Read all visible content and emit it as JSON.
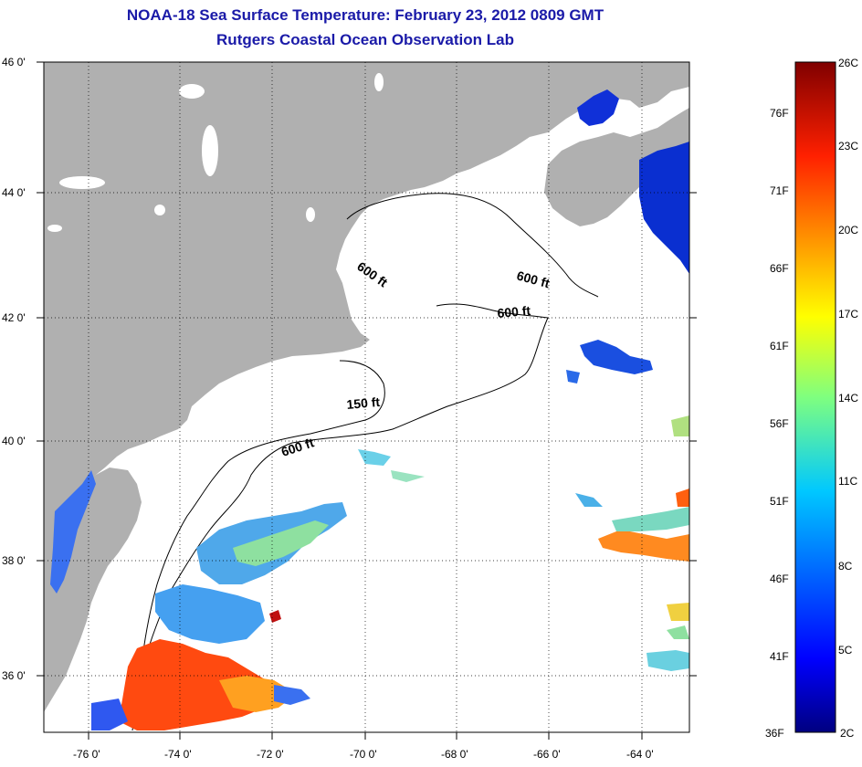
{
  "title": {
    "line1": "NOAA-18 Sea Surface Temperature:  February 23, 2012 0809 GMT",
    "line2": "Rutgers Coastal Ocean Observation Lab"
  },
  "axes": {
    "lat_labels": [
      "46 0'",
      "44 0'",
      "42 0'",
      "40 0'",
      "38 0'",
      "36 0'"
    ],
    "lon_labels": [
      "-76 0'",
      "-74 0'",
      "-72 0'",
      "-70 0'",
      "-68 0'",
      "-66 0'",
      "-64 0'"
    ],
    "lat_range": [
      35,
      46
    ],
    "lon_range": [
      -77,
      -63
    ]
  },
  "contours": {
    "label_600_a": "600 ft",
    "label_600_b": "600 ft",
    "label_600_c": "600 ft",
    "label_150": "150 ft",
    "label_600_d": "600 ft"
  },
  "colorbar": {
    "fahrenheit": [
      "76F",
      "71F",
      "66F",
      "61F",
      "56F",
      "51F",
      "46F",
      "41F",
      "36F"
    ],
    "celsius": [
      "26C",
      "23C",
      "20C",
      "17C",
      "14C",
      "11C",
      "8C",
      "5C",
      "2C"
    ],
    "range_c": [
      2,
      26
    ],
    "range_f": [
      36,
      79
    ]
  },
  "colors": {
    "land": "#b0b0b0",
    "ocean": "#ffffff",
    "title": "#1a1aa8"
  }
}
